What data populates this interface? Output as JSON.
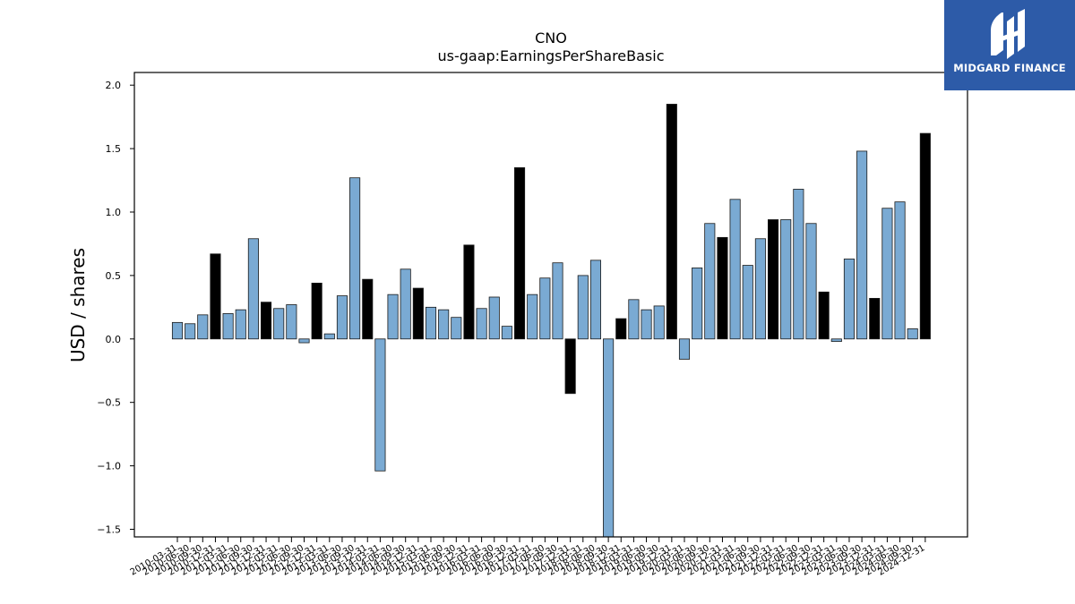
{
  "brand": {
    "name": "MIDGARD FINANCE",
    "logo_icon": "midgard-m-icon",
    "colors": {
      "panel": "#2d5ba8",
      "text": "#ffffff"
    }
  },
  "chart_data": {
    "type": "bar",
    "title": "CNO",
    "subtitle": "us-gaap:EarningsPerShareBasic",
    "xlabel": "",
    "ylabel": "USD / shares",
    "ylim": [
      -1.56,
      2.1
    ],
    "yticks": [
      -1.5,
      -1.0,
      -0.5,
      0.0,
      0.5,
      1.0,
      1.5,
      2.0
    ],
    "ytick_labels": [
      "−1.5",
      "−1.0",
      "−0.5",
      "0.0",
      "0.5",
      "1.0",
      "1.5",
      "2.0"
    ],
    "grid": false,
    "colors": {
      "quarter": "#7aaad3",
      "annual": "#000000",
      "edge": "#1a1a1a"
    },
    "categories": [
      "2010-03-31",
      "2010-06-30",
      "2010-09-30",
      "2010-12-31",
      "2011-03-31",
      "2011-06-30",
      "2011-09-30",
      "2011-12-31",
      "2012-03-31",
      "2012-06-30",
      "2012-09-30",
      "2012-12-31",
      "2013-03-31",
      "2013-06-30",
      "2013-09-30",
      "2013-12-31",
      "2014-03-31",
      "2014-06-30",
      "2014-09-30",
      "2014-12-31",
      "2015-03-31",
      "2015-06-30",
      "2015-09-30",
      "2015-12-31",
      "2016-03-31",
      "2016-06-30",
      "2016-09-30",
      "2016-12-31",
      "2017-03-31",
      "2017-06-30",
      "2017-09-30",
      "2017-12-31",
      "2018-03-31",
      "2018-06-30",
      "2018-09-30",
      "2018-12-31",
      "2019-03-31",
      "2019-06-30",
      "2019-09-30",
      "2019-12-31",
      "2020-03-31",
      "2020-06-30",
      "2020-09-30",
      "2020-12-31",
      "2021-03-31",
      "2021-06-30",
      "2021-09-30",
      "2021-12-31",
      "2022-03-31",
      "2022-06-30",
      "2022-09-30",
      "2022-12-31",
      "2023-03-31",
      "2023-06-30",
      "2023-09-30",
      "2023-12-31",
      "2024-03-31",
      "2024-06-30",
      "2024-09-30",
      "2024-12-31"
    ],
    "values": [
      0.13,
      0.12,
      0.19,
      0.67,
      0.2,
      0.23,
      0.79,
      0.29,
      0.24,
      0.27,
      -0.03,
      0.44,
      0.04,
      0.34,
      1.27,
      0.47,
      -1.04,
      0.35,
      0.55,
      0.4,
      0.25,
      0.23,
      0.17,
      0.74,
      0.24,
      0.33,
      0.1,
      1.35,
      0.35,
      0.48,
      0.6,
      -0.43,
      0.5,
      0.62,
      -1.6,
      0.16,
      0.31,
      0.23,
      0.26,
      1.85,
      -0.16,
      0.56,
      0.91,
      0.8,
      1.1,
      0.58,
      0.79,
      0.94,
      0.94,
      1.18,
      0.91,
      0.37,
      -0.02,
      0.63,
      1.48,
      0.32,
      1.03,
      1.08,
      0.08,
      1.62
    ],
    "annual_flags": [
      0,
      0,
      0,
      1,
      0,
      0,
      0,
      1,
      0,
      0,
      0,
      1,
      0,
      0,
      0,
      1,
      0,
      0,
      0,
      1,
      0,
      0,
      0,
      1,
      0,
      0,
      0,
      1,
      0,
      0,
      0,
      1,
      0,
      0,
      0,
      1,
      0,
      0,
      0,
      1,
      0,
      0,
      0,
      1,
      0,
      0,
      0,
      1,
      0,
      0,
      0,
      1,
      0,
      0,
      0,
      1,
      0,
      0,
      0,
      1
    ]
  }
}
